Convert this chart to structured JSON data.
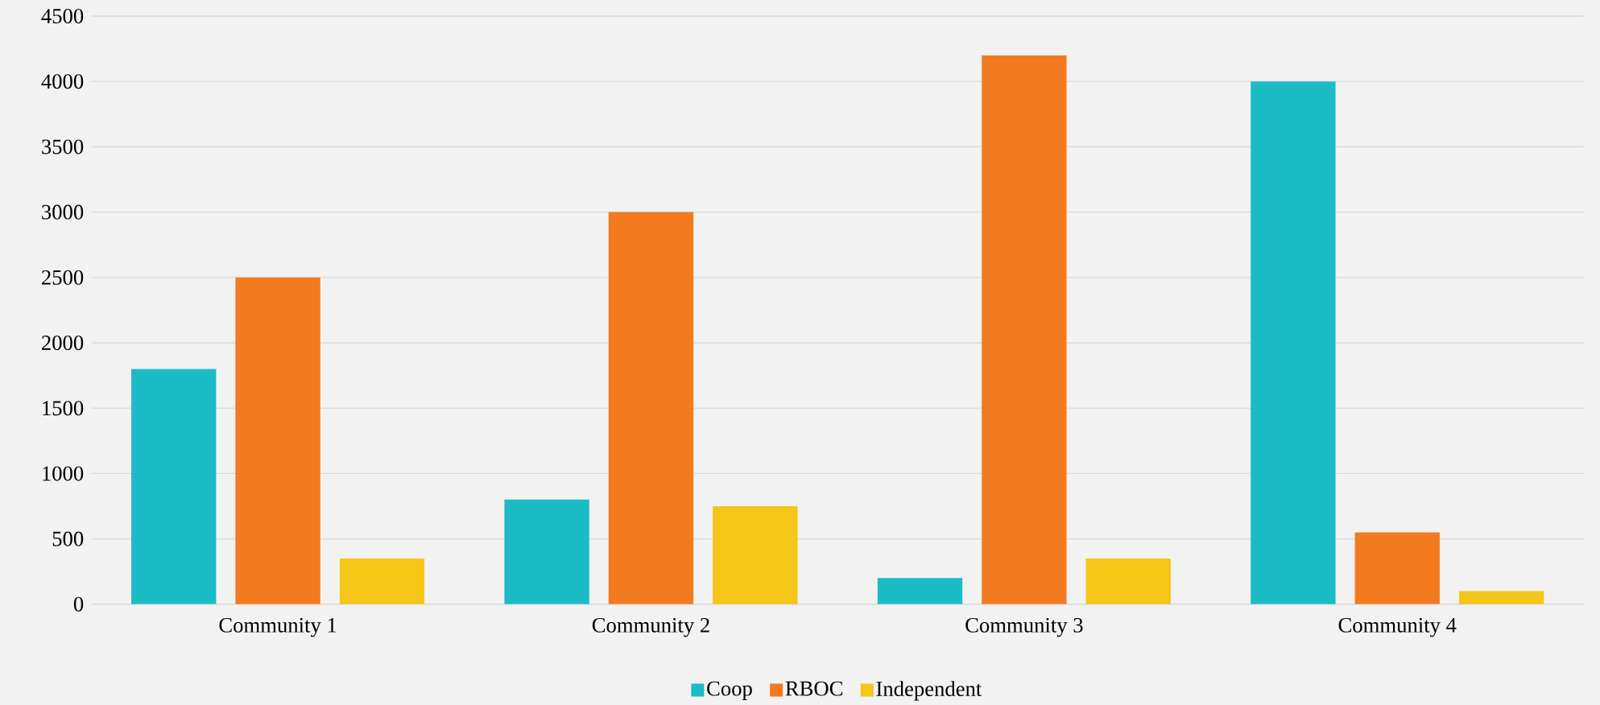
{
  "chart_data": {
    "type": "bar",
    "categories": [
      "Community 1",
      "Community 2",
      "Community 3",
      "Community 4"
    ],
    "series": [
      {
        "name": "Coop",
        "color": "#1bbcc6",
        "values": [
          1800,
          800,
          200,
          4000
        ]
      },
      {
        "name": "RBOC",
        "color": "#f47a1f",
        "values": [
          2500,
          3000,
          4200,
          550
        ]
      },
      {
        "name": "Independent",
        "color": "#f5c518",
        "values": [
          350,
          750,
          350,
          100
        ]
      }
    ],
    "ylim": [
      0,
      4500
    ],
    "yticks": [
      0,
      500,
      1000,
      1500,
      2000,
      2500,
      3000,
      3500,
      4000,
      4500
    ],
    "grid": "y",
    "legend": "bottom"
  }
}
